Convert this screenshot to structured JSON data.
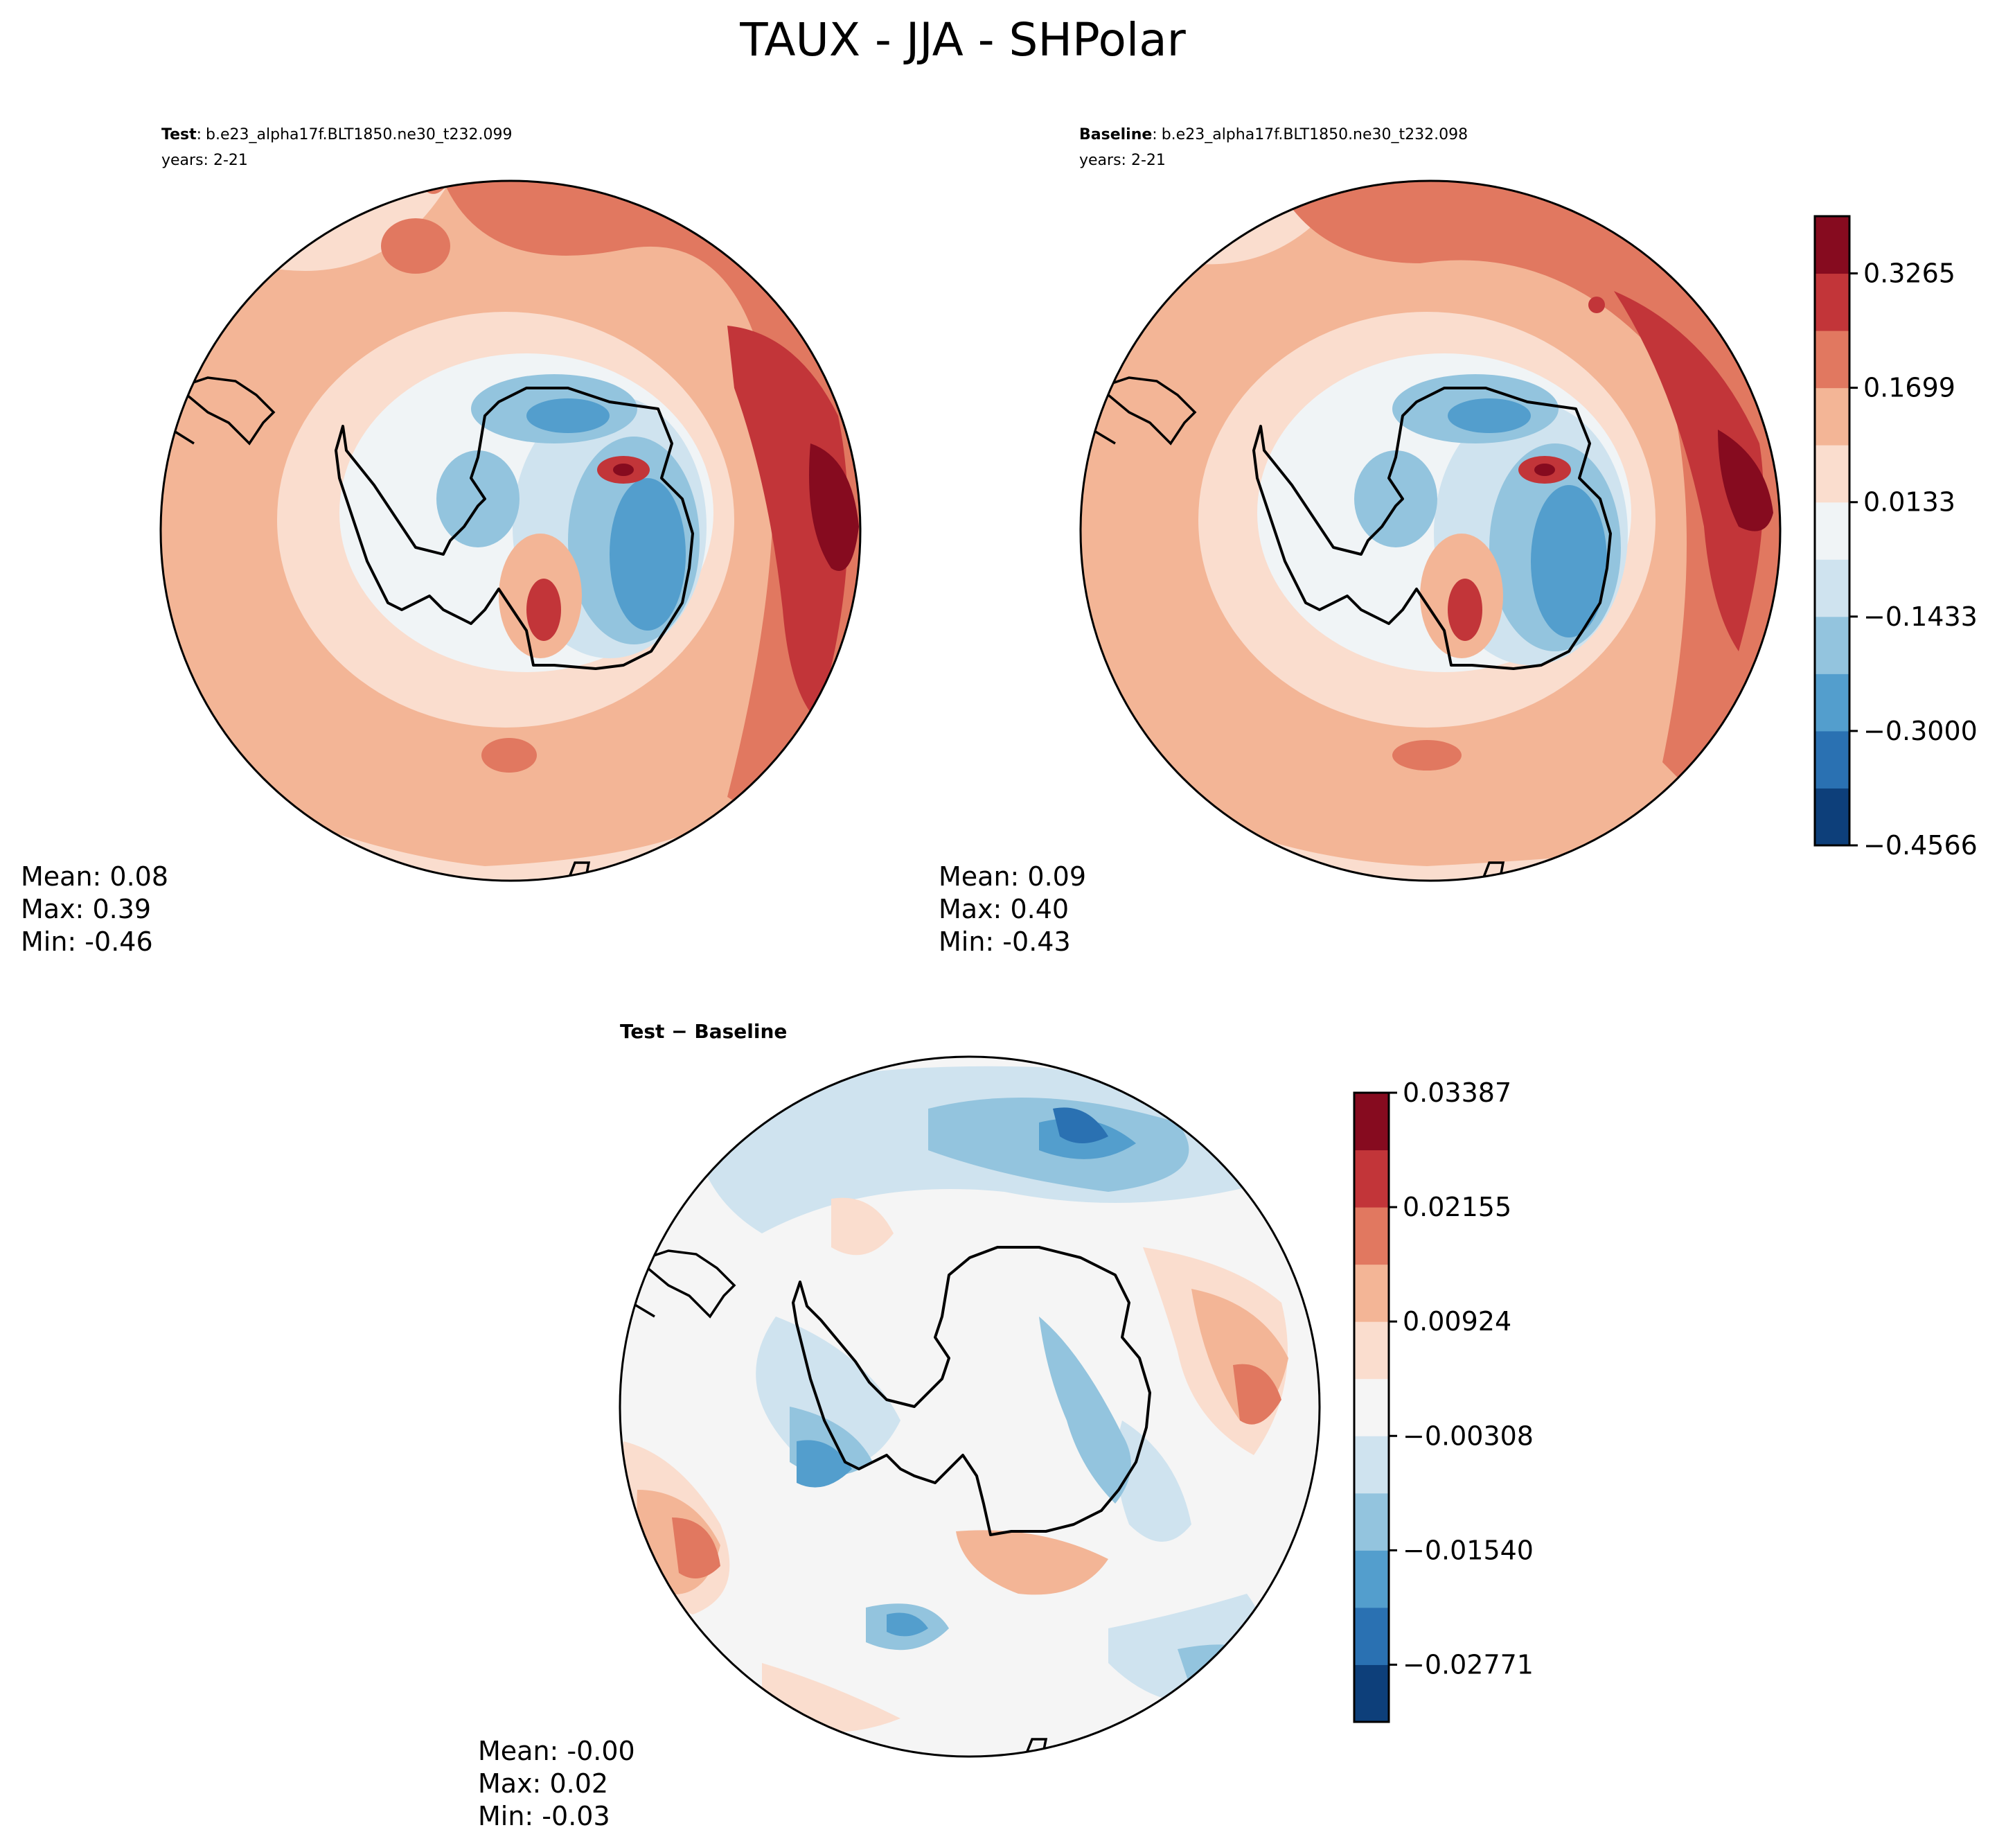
{
  "title": "TAUX - JJA - SHPolar",
  "panels": {
    "test": {
      "label_bold": "Test",
      "label_sep": ":",
      "case": "b.e23_alpha17f.BLT1850.ne30_t232.099",
      "years": "years: 2-21",
      "stats": {
        "mean": "Mean:  0.08",
        "max": "Max:  0.39",
        "min": "Min: -0.46"
      }
    },
    "baseline": {
      "label_bold": "Baseline",
      "label_sep": ":",
      "case": "b.e23_alpha17f.BLT1850.ne30_t232.098",
      "years": "years: 2-21",
      "stats": {
        "mean": "Mean:  0.09",
        "max": "Max:  0.40",
        "min": "Min: -0.43"
      }
    },
    "diff": {
      "label_bold": "Test − Baseline",
      "stats": {
        "mean": "Mean: -0.00",
        "max": "Max:  0.02",
        "min": "Min: -0.03"
      }
    }
  },
  "chart_data": [
    {
      "type": "heatmap",
      "name": "Test",
      "projection": "south polar stereographic",
      "mean": 0.08,
      "max": 0.39,
      "min": -0.46,
      "levels": [
        -0.4566,
        -0.3783,
        -0.3,
        -0.2216,
        -0.1433,
        -0.065,
        0.0133,
        0.0916,
        0.1699,
        0.2482,
        0.3265,
        0.4048
      ]
    },
    {
      "type": "heatmap",
      "name": "Baseline",
      "projection": "south polar stereographic",
      "mean": 0.09,
      "max": 0.4,
      "min": -0.43,
      "levels": [
        -0.4566,
        -0.3783,
        -0.3,
        -0.2216,
        -0.1433,
        -0.065,
        0.0133,
        0.0916,
        0.1699,
        0.2482,
        0.3265,
        0.4048
      ]
    },
    {
      "type": "heatmap",
      "name": "Test − Baseline",
      "projection": "south polar stereographic",
      "mean": -0.0,
      "max": 0.02,
      "min": -0.03,
      "levels": [
        -0.03387,
        -0.02771,
        -0.02155,
        -0.0154,
        -0.00924,
        -0.00308,
        0.00308,
        0.00924,
        0.0154,
        0.02155,
        0.02771,
        0.03387
      ]
    }
  ],
  "colorbars": {
    "main": {
      "colors": [
        "#0d3f7a",
        "#2a71b2",
        "#539ecd",
        "#93c4de",
        "#cfe3ef",
        "#f0f4f6",
        "#faddce",
        "#f3b596",
        "#e17860",
        "#c23539",
        "#860b1f"
      ],
      "tick_labels": [
        "0.3265",
        "0.1699",
        "0.0133",
        "−0.1433",
        "−0.3000",
        "−0.4566"
      ]
    },
    "diff": {
      "colors": [
        "#0d3f7a",
        "#2a71b2",
        "#539ecd",
        "#93c4de",
        "#cfe3ef",
        "#f5f5f5",
        "#faddce",
        "#f3b596",
        "#e17860",
        "#c23539",
        "#860b1f"
      ],
      "tick_labels": [
        "0.03387",
        "0.02155",
        "0.00924",
        "−0.00308",
        "−0.01540",
        "−0.02771"
      ]
    }
  }
}
